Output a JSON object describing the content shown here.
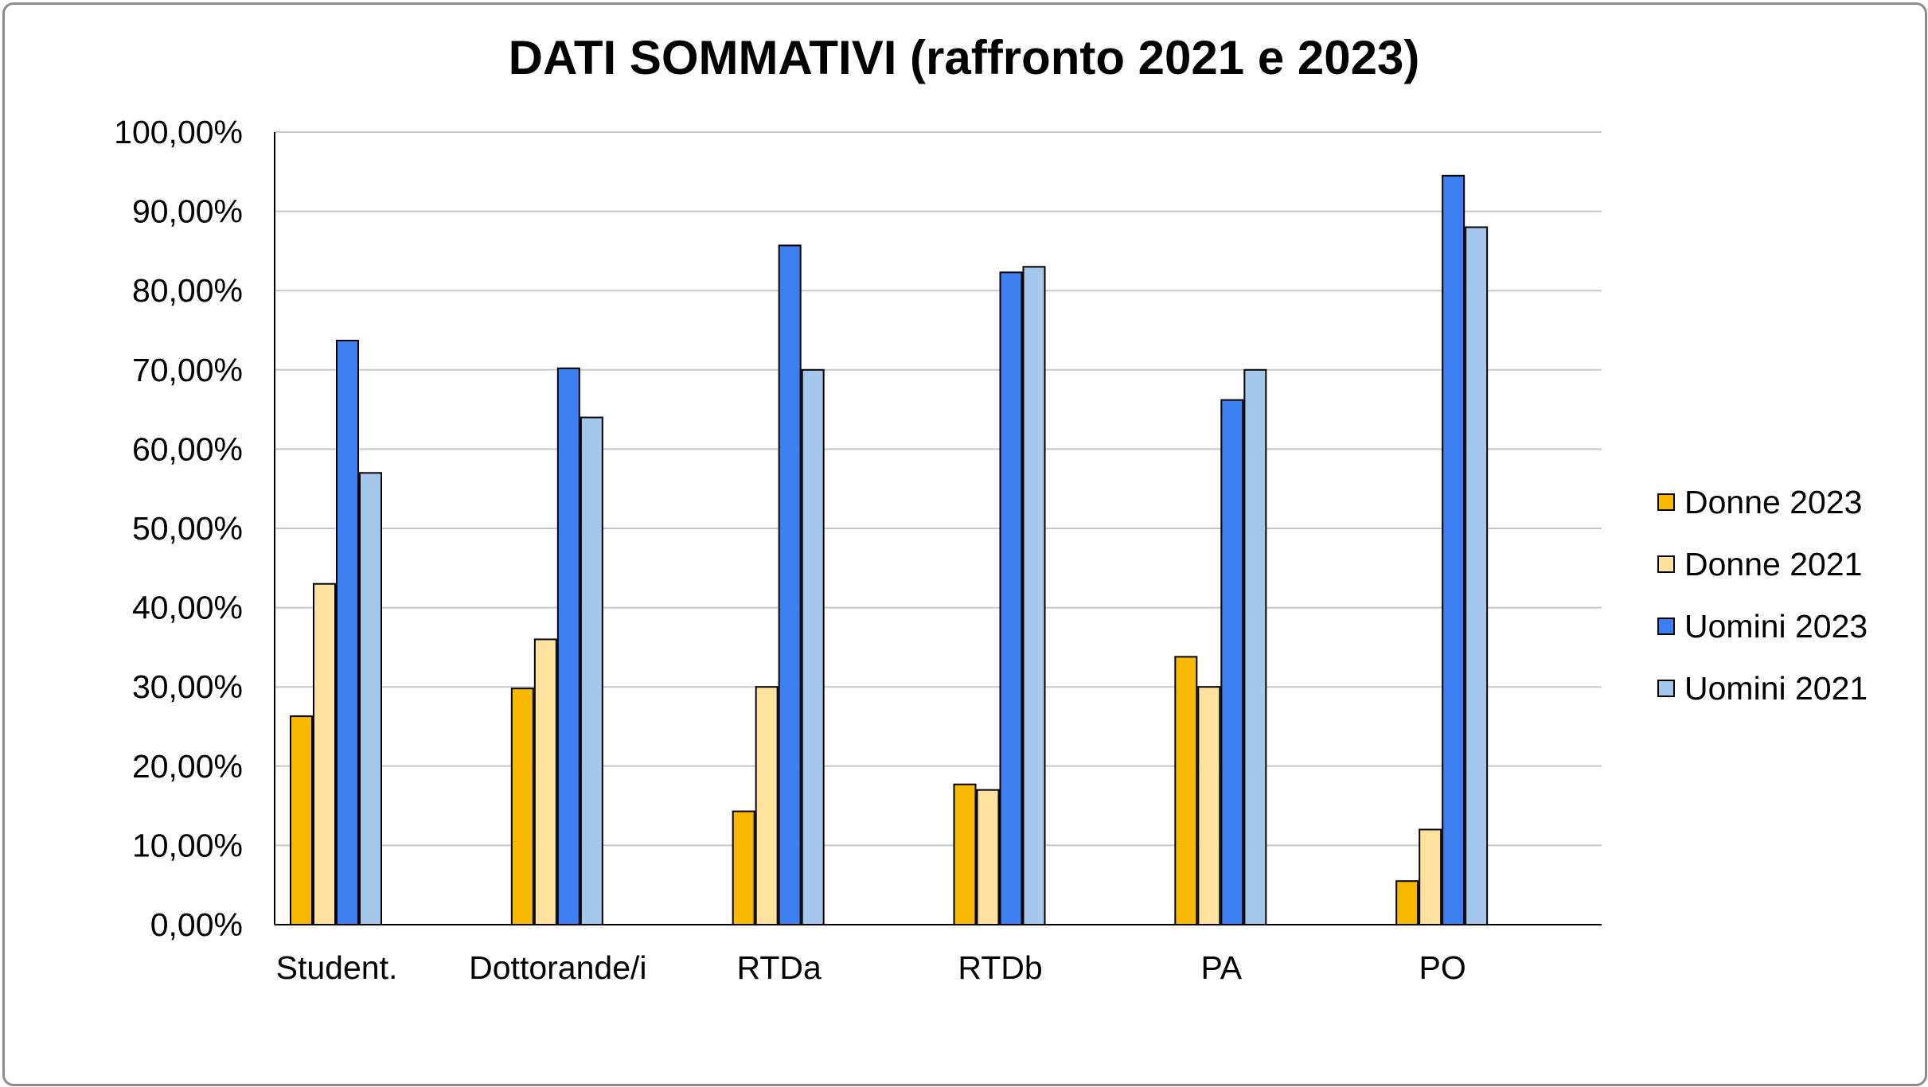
{
  "chart_data": {
    "type": "bar",
    "title": "DATI SOMMATIVI (raffronto 2021 e 2023)",
    "categories": [
      "Student.",
      "Dottorande/i",
      "RTDa",
      "RTDb",
      "PA",
      "PO"
    ],
    "series": [
      {
        "name": "Donne 2023",
        "color": "#f9b800",
        "values": [
          26.3,
          29.8,
          14.3,
          17.7,
          33.8,
          5.5
        ]
      },
      {
        "name": "Donne 2021",
        "color": "#ffe29e",
        "values": [
          43.0,
          36.0,
          30.0,
          17.0,
          30.0,
          12.0
        ]
      },
      {
        "name": "Uomini 2023",
        "color": "#3d7ff0",
        "values": [
          73.7,
          70.2,
          85.7,
          82.3,
          66.2,
          94.5
        ]
      },
      {
        "name": "Uomini 2021",
        "color": "#a5c7ec",
        "values": [
          57.0,
          64.0,
          70.0,
          83.0,
          70.0,
          88.0
        ]
      }
    ],
    "ylim": [
      0,
      100
    ],
    "yticks": [
      "0,00%",
      "10,00%",
      "20,00%",
      "30,00%",
      "40,00%",
      "50,00%",
      "60,00%",
      "70,00%",
      "80,00%",
      "90,00%",
      "100,00%"
    ],
    "grid": true,
    "legend_position": "right"
  }
}
